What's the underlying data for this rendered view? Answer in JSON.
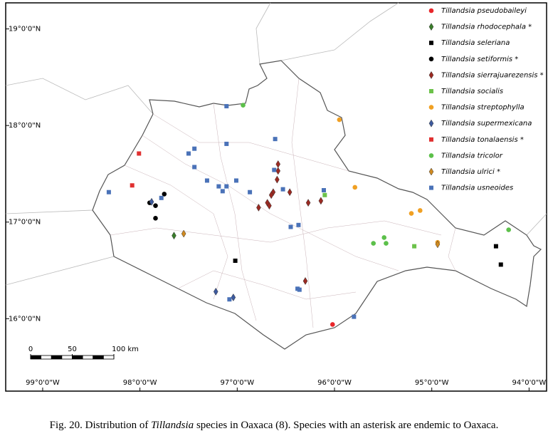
{
  "chart_data": {
    "type": "map",
    "xlim": [
      -99.38,
      -93.82
    ],
    "ylim": [
      15.25,
      19.27
    ],
    "xticks": [
      {
        "value": -99,
        "label": "99°0'0\"W"
      },
      {
        "value": -98,
        "label": "98°0'0\"W"
      },
      {
        "value": -97,
        "label": "97°0'0\"W"
      },
      {
        "value": -96,
        "label": "96°0'0\"W"
      },
      {
        "value": -95,
        "label": "95°0'0\"W"
      },
      {
        "value": -94,
        "label": "94°0'0\"W"
      }
    ],
    "yticks": [
      {
        "value": 19,
        "label": "19°0'0\"N"
      },
      {
        "value": 18,
        "label": "18°0'0\"N"
      },
      {
        "value": 17,
        "label": "17°0'0\"N"
      },
      {
        "value": 16,
        "label": "16°0'0\"N"
      }
    ],
    "scale_bar": {
      "ticks": [
        0,
        50,
        100
      ],
      "labels": [
        "0",
        "50",
        "100 km"
      ]
    },
    "series": [
      {
        "name": "Tillandsia pseudobaileyi",
        "color": "#e8262a",
        "marker": "circle",
        "x": [
          -96.02
        ],
        "y": [
          15.94
        ]
      },
      {
        "name": "Tillandsia rhodocephala *",
        "color": "#3a7d2a",
        "marker": "diamond",
        "x": [
          -97.65
        ],
        "y": [
          16.86
        ]
      },
      {
        "name": "Tillandsia seleriana",
        "color": "#000000",
        "marker": "square",
        "x": [
          -94.34,
          -94.29,
          -97.02
        ],
        "y": [
          16.75,
          16.56,
          16.6
        ]
      },
      {
        "name": "Tillandsia setiformis *",
        "color": "#000000",
        "marker": "circle",
        "x": [
          -97.9,
          -97.84,
          -97.75,
          -97.84
        ],
        "y": [
          17.2,
          17.17,
          17.29,
          17.04
        ]
      },
      {
        "name": "Tillandsia sierrajuarezensis *",
        "color": "#9b2a22",
        "marker": "diamond",
        "x": [
          -96.58,
          -96.58,
          -96.59,
          -96.63,
          -96.65,
          -96.69,
          -96.67,
          -96.78,
          -96.46,
          -96.27,
          -96.14,
          -96.3
        ],
        "y": [
          17.6,
          17.53,
          17.44,
          17.31,
          17.28,
          17.2,
          17.17,
          17.15,
          17.31,
          17.2,
          17.22,
          16.39
        ]
      },
      {
        "name": "Tillandsia socialis",
        "color": "#6cc24a",
        "marker": "square",
        "x": [
          -96.1,
          -95.18
        ],
        "y": [
          17.28,
          16.75
        ]
      },
      {
        "name": "Tillandsia streptophylla",
        "color": "#f0a023",
        "marker": "circle",
        "x": [
          -95.95,
          -95.79,
          -95.21,
          -95.12,
          -94.94
        ],
        "y": [
          18.06,
          17.36,
          17.09,
          17.12,
          16.79
        ]
      },
      {
        "name": "Tillandsia supermexicana",
        "color": "#3d5a9e",
        "marker": "diamond",
        "x": [
          -97.88,
          -97.22,
          -97.04
        ],
        "y": [
          17.21,
          16.28,
          16.22
        ]
      },
      {
        "name": "Tillandsia tonalaensis *",
        "color": "#e03030",
        "marker": "square",
        "x": [
          -98.01,
          -98.08
        ],
        "y": [
          17.71,
          17.38
        ]
      },
      {
        "name": "Tillandsia tricolor",
        "color": "#5cc04a",
        "marker": "circle",
        "x": [
          -96.94,
          -95.6,
          -95.49,
          -95.47,
          -94.21
        ],
        "y": [
          18.21,
          16.78,
          16.84,
          16.78,
          16.92
        ]
      },
      {
        "name": "Tillandsia ulrici *",
        "color": "#d08a20",
        "marker": "diamond",
        "x": [
          -97.55,
          -94.94
        ],
        "y": [
          16.88,
          16.77
        ]
      },
      {
        "name": "Tillandsia usneoides",
        "color": "#4a72b8",
        "marker": "square",
        "x": [
          -97.11,
          -96.61,
          -97.11,
          -97.5,
          -97.44,
          -97.44,
          -97.31,
          -97.19,
          -97.11,
          -97.15,
          -97.01,
          -96.87,
          -96.62,
          -96.53,
          -96.11,
          -96.45,
          -96.37,
          -96.38,
          -96.36,
          -97.08,
          -95.8,
          -98.32,
          -97.78
        ],
        "y": [
          18.2,
          17.86,
          17.81,
          17.71,
          17.76,
          17.57,
          17.43,
          17.37,
          17.37,
          17.32,
          17.43,
          17.31,
          17.54,
          17.34,
          17.33,
          16.95,
          16.97,
          16.31,
          16.3,
          16.2,
          16.02,
          17.31,
          17.25
        ]
      }
    ]
  },
  "caption": {
    "before": "Fig. 20. Distribution of ",
    "italic": "Tillandsia",
    "after": " species in Oaxaca (8). Species with an asterisk are endemic to Oaxaca."
  }
}
